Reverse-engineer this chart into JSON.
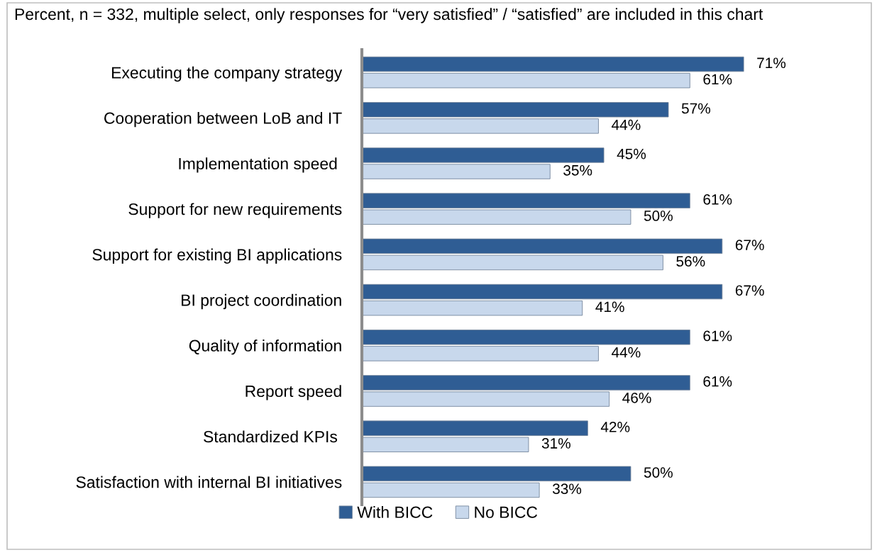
{
  "chart_data": {
    "type": "bar",
    "orientation": "horizontal",
    "title": "Percent, n = 332, multiple select, only responses for “very satisfied” / “satisfied” are included in this chart",
    "categories": [
      "Executing the company strategy",
      "Cooperation between LoB and IT",
      "Implementation speed ",
      "Support for new requirements",
      "Support for existing BI applications",
      "BI project coordination",
      "Quality of information",
      "Report speed",
      "Standardized KPIs ",
      "Satisfaction with internal BI initiatives"
    ],
    "series": [
      {
        "name": "With BICC",
        "color": "#2f5d94",
        "values": [
          71,
          57,
          45,
          61,
          67,
          67,
          61,
          61,
          42,
          50
        ],
        "value_labels": [
          "71%",
          "57%",
          "45%",
          "61%",
          "67%",
          "67%",
          "61%",
          "61%",
          "42%",
          "50%"
        ]
      },
      {
        "name": "No BICC",
        "color": "#c8d8ec",
        "values": [
          61,
          44,
          35,
          50,
          56,
          41,
          44,
          46,
          31,
          33
        ],
        "value_labels": [
          "61%",
          "44%",
          "35%",
          "50%",
          "56%",
          "41%",
          "44%",
          "46%",
          "31%",
          "33%"
        ]
      }
    ],
    "legend": "bottom",
    "grid": false,
    "tick_labels": "y"
  }
}
